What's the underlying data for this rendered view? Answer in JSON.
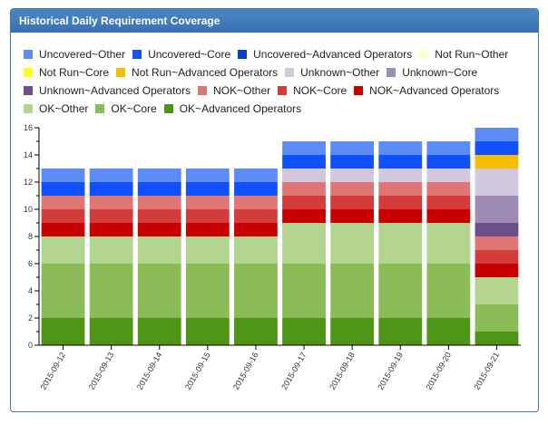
{
  "panel": {
    "title": "Historical Daily Requirement Coverage"
  },
  "chart_data": {
    "type": "bar",
    "stacked": true,
    "title": "Historical Daily Requirement Coverage",
    "xlabel": "",
    "ylabel": "",
    "ylim": [
      0,
      16
    ],
    "yticks": [
      "0",
      "2",
      "4",
      "6",
      "8",
      "10",
      "12",
      "14",
      "16"
    ],
    "grid": false,
    "legend_position": "top",
    "categories": [
      "2015-09-12",
      "2015-09-13",
      "2015-09-14",
      "2015-09-15",
      "2015-09-16",
      "2015-09-17",
      "2015-09-18",
      "2015-09-19",
      "2015-09-20",
      "2015-09-21"
    ],
    "series": [
      {
        "name": "OK~Advanced Operators",
        "color": "#4f9515",
        "values": [
          2,
          2,
          2,
          2,
          2,
          2,
          2,
          2,
          2,
          1
        ]
      },
      {
        "name": "OK~Core",
        "color": "#8abb57",
        "values": [
          4,
          4,
          4,
          4,
          4,
          4,
          4,
          4,
          4,
          2
        ]
      },
      {
        "name": "OK~Other",
        "color": "#b2d48f",
        "values": [
          2,
          2,
          2,
          2,
          2,
          3,
          3,
          3,
          3,
          2
        ]
      },
      {
        "name": "NOK~Advanced Operators",
        "color": "#c80000",
        "values": [
          1,
          1,
          1,
          1,
          1,
          1,
          1,
          1,
          1,
          1
        ]
      },
      {
        "name": "NOK~Core",
        "color": "#d43b3b",
        "values": [
          1,
          1,
          1,
          1,
          1,
          1,
          1,
          1,
          1,
          1
        ]
      },
      {
        "name": "NOK~Other",
        "color": "#df7575",
        "values": [
          1,
          1,
          1,
          1,
          1,
          1,
          1,
          1,
          1,
          1
        ]
      },
      {
        "name": "Unknown~Advanced Operators",
        "color": "#6a4f8a",
        "values": [
          0,
          0,
          0,
          0,
          0,
          0,
          0,
          0,
          0,
          1
        ]
      },
      {
        "name": "Unknown~Core",
        "color": "#9d8bb3",
        "values": [
          0,
          0,
          0,
          0,
          0,
          0,
          0,
          0,
          0,
          2
        ]
      },
      {
        "name": "Unknown~Other",
        "color": "#d2c8dd",
        "values": [
          0,
          0,
          0,
          0,
          0,
          1,
          1,
          1,
          1,
          2
        ]
      },
      {
        "name": "Not Run~Advanced Operators",
        "color": "#f4be00",
        "values": [
          0,
          0,
          0,
          0,
          0,
          0,
          0,
          0,
          0,
          1
        ]
      },
      {
        "name": "Not Run~Core",
        "color": "#ffff1a",
        "values": [
          0,
          0,
          0,
          0,
          0,
          0,
          0,
          0,
          0,
          0
        ]
      },
      {
        "name": "Not Run~Other",
        "color": "#ffffcc",
        "values": [
          0,
          0,
          0,
          0,
          0,
          0,
          0,
          0,
          0,
          0
        ]
      },
      {
        "name": "Uncovered~Advanced Operators",
        "color": "#0a3fc4",
        "values": [
          0,
          0,
          0,
          0,
          0,
          0,
          0,
          0,
          0,
          0
        ]
      },
      {
        "name": "Uncovered~Core",
        "color": "#1050ff",
        "values": [
          1,
          1,
          1,
          1,
          1,
          1,
          1,
          1,
          1,
          1
        ]
      },
      {
        "name": "Uncovered~Other",
        "color": "#5c8cf6",
        "values": [
          1,
          1,
          1,
          1,
          1,
          1,
          1,
          1,
          1,
          1
        ]
      }
    ],
    "legend_rows": [
      [
        "Uncovered~Other",
        "Uncovered~Core",
        "Uncovered~Advanced Operators",
        "Not Run~Other"
      ],
      [
        "Not Run~Core",
        "Not Run~Advanced Operators",
        "Unknown~Other",
        "Unknown~Core"
      ],
      [
        "Unknown~Advanced Operators",
        "NOK~Other",
        "NOK~Core",
        "NOK~Advanced Operators"
      ],
      [
        "OK~Other",
        "OK~Core",
        "OK~Advanced Operators"
      ]
    ]
  }
}
